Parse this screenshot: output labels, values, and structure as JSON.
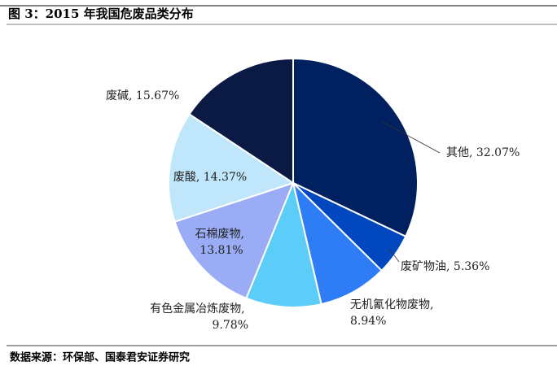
{
  "chart_data": {
    "type": "pie",
    "title": "图 3：2015 年我国危废品类分布",
    "source": "数据来源：环保部、国泰君安证券研究",
    "categories": [
      "其他",
      "废矿物油",
      "无机氰化物废物",
      "有色金属冶炼废物",
      "石棉废物",
      "废酸",
      "废碱"
    ],
    "values": [
      32.07,
      5.36,
      8.94,
      9.78,
      13.81,
      14.37,
      15.67
    ],
    "value_labels": [
      "32.07%",
      "5.36%",
      "8.94%",
      "9.78%",
      "13.81%",
      "14.37%",
      "15.67%"
    ],
    "colors": [
      "#002060",
      "#0047c0",
      "#2e7cf6",
      "#5ccdf8",
      "#9aacf5",
      "#bfe6fa",
      "#0b1a45"
    ]
  }
}
